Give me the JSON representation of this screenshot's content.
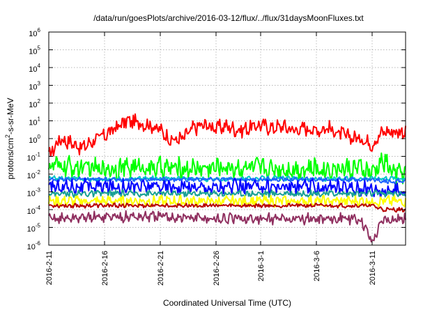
{
  "chart_data": {
    "type": "line",
    "title": "/data/run/goesPlots/archive/2016-03-12/flux/../flux/31daysMoonFluxes.txt",
    "xlabel": "Coordinated Universal Time (UTC)",
    "ylabel": {
      "prefix": "protons/cm",
      "sup": "2",
      "suffix": "-s-sr-MeV"
    },
    "y_scale": "log",
    "ylim_exp": [
      -6,
      6
    ],
    "ytick_exponents": [
      -6,
      -5,
      -4,
      -3,
      -2,
      -1,
      0,
      1,
      2,
      3,
      4,
      5,
      6
    ],
    "ytick_base": "10",
    "xlim": [
      "2016-02-11",
      "2016-03-14"
    ],
    "xticks": [
      "2016-2-11",
      "2016-2-16",
      "2016-2-21",
      "2016-2-26",
      "2016-3-1",
      "2016-3-6",
      "2016-3-11"
    ],
    "grid": true,
    "legend": "none",
    "series": [
      {
        "color": "#ff0000",
        "x": [
          "2016-02-11",
          "2016-02-12",
          "2016-02-13",
          "2016-02-14",
          "2016-02-15",
          "2016-02-16",
          "2016-02-17",
          "2016-02-18",
          "2016-02-19",
          "2016-02-20",
          "2016-02-21",
          "2016-02-22",
          "2016-02-23",
          "2016-02-24",
          "2016-02-25",
          "2016-02-26",
          "2016-02-27",
          "2016-02-28",
          "2016-02-29",
          "2016-03-01",
          "2016-03-02",
          "2016-03-03",
          "2016-03-04",
          "2016-03-05",
          "2016-03-06",
          "2016-03-07",
          "2016-03-08",
          "2016-03-09",
          "2016-03-10",
          "2016-03-11",
          "2016-03-12",
          "2016-03-13",
          "2016-03-14"
        ],
        "y": [
          0.1,
          1.0,
          0.6,
          0.3,
          0.8,
          1.5,
          4.0,
          10,
          8,
          6,
          3,
          0.8,
          1.0,
          4,
          6,
          4,
          5,
          3,
          4,
          6,
          4,
          5,
          3,
          4,
          3,
          4,
          2,
          1.2,
          1.0,
          0.5,
          2.5,
          2.5,
          2.5
        ]
      },
      {
        "color": "#00ff00",
        "x": [
          "2016-02-11",
          "2016-02-15",
          "2016-02-19",
          "2016-02-23",
          "2016-02-27",
          "2016-03-02",
          "2016-03-06",
          "2016-03-10",
          "2016-03-11",
          "2016-03-12",
          "2016-03-13",
          "2016-03-14"
        ],
        "y": [
          0.03,
          0.02,
          0.025,
          0.02,
          0.025,
          0.02,
          0.02,
          0.02,
          0.01,
          0.06,
          0.01,
          0.015
        ]
      },
      {
        "color": "#00c8c8",
        "x": [
          "2016-02-11",
          "2016-02-16",
          "2016-02-21",
          "2016-02-26",
          "2016-03-02",
          "2016-03-07",
          "2016-03-11",
          "2016-03-14"
        ],
        "y": [
          0.006,
          0.005,
          0.006,
          0.005,
          0.006,
          0.005,
          0.006,
          0.006
        ]
      },
      {
        "color": "#1e64ff",
        "x": [
          "2016-02-11",
          "2016-03-11",
          "2016-03-12",
          "2016-03-14"
        ],
        "y": [
          0.005,
          0.005,
          0.004,
          0.004
        ]
      },
      {
        "color": "#0000ff",
        "x": [
          "2016-02-11",
          "2016-02-16",
          "2016-02-21",
          "2016-02-26",
          "2016-03-02",
          "2016-03-07",
          "2016-03-11",
          "2016-03-12",
          "2016-03-14"
        ],
        "y": [
          0.002,
          0.002,
          0.002,
          0.0018,
          0.002,
          0.0018,
          0.0015,
          0.0012,
          0.0012
        ]
      },
      {
        "color": "#19a094",
        "x": [
          "2016-02-11",
          "2016-03-14"
        ],
        "y": [
          0.0008,
          0.0008
        ]
      },
      {
        "color": "#ffff00",
        "x": [
          "2016-02-11",
          "2016-02-16",
          "2016-02-21",
          "2016-02-26",
          "2016-03-02",
          "2016-03-07",
          "2016-03-11",
          "2016-03-12",
          "2016-03-14"
        ],
        "y": [
          0.0003,
          0.0003,
          0.0003,
          0.0003,
          0.0003,
          0.0003,
          0.0003,
          0.0003,
          0.0003
        ]
      },
      {
        "color": "#b80000",
        "x": [
          "2016-02-11",
          "2016-03-11",
          "2016-03-12",
          "2016-03-14"
        ],
        "y": [
          0.00017,
          0.00017,
          0.0001,
          0.0001
        ]
      },
      {
        "color": "#903060",
        "x": [
          "2016-02-11",
          "2016-02-16",
          "2016-02-21",
          "2016-02-26",
          "2016-03-02",
          "2016-03-07",
          "2016-03-10",
          "2016-03-11",
          "2016-03-12",
          "2016-03-14"
        ],
        "y": [
          3e-05,
          4e-05,
          4e-05,
          3e-05,
          3e-05,
          3e-05,
          3e-05,
          1.5e-06,
          3e-05,
          3e-05
        ]
      }
    ]
  }
}
